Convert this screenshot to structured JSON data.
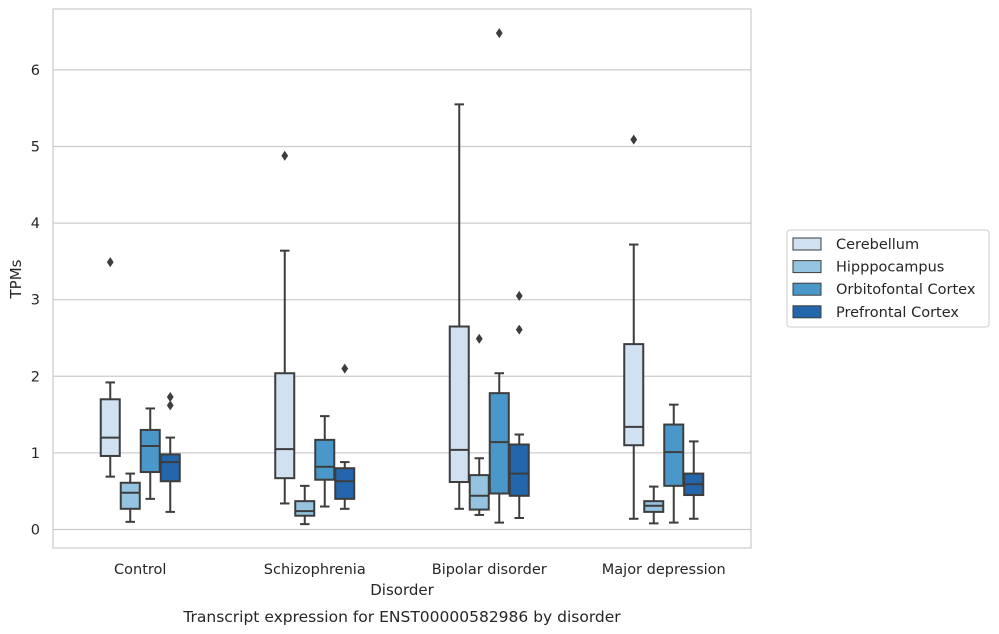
{
  "chart_data": {
    "type": "box",
    "title": "Transcript expression for ENST00000582986 by disorder",
    "xlabel": "Disorder",
    "ylabel": "TPMs",
    "categories": [
      "Control",
      "Schizophrenia",
      "Bipolar disorder",
      "Major depression"
    ],
    "ylim": [
      -0.24,
      6.8
    ],
    "yticks": [
      0,
      1,
      2,
      3,
      4,
      5,
      6
    ],
    "grid": "horizontal",
    "legend_position": "right",
    "series": [
      {
        "name": "Cerebellum",
        "color": "#d0e1f2",
        "boxes": [
          {
            "whisker_low": 0.69,
            "q1": 0.96,
            "median": 1.2,
            "q3": 1.7,
            "whisker_high": 1.92,
            "outliers": [
              3.49
            ]
          },
          {
            "whisker_low": 0.34,
            "q1": 0.67,
            "median": 1.05,
            "q3": 2.04,
            "whisker_high": 3.64,
            "outliers": [
              4.88
            ]
          },
          {
            "whisker_low": 0.27,
            "q1": 0.62,
            "median": 1.04,
            "q3": 2.65,
            "whisker_high": 5.55,
            "outliers": []
          },
          {
            "whisker_low": 0.14,
            "q1": 1.1,
            "median": 1.34,
            "q3": 2.42,
            "whisker_high": 3.72,
            "outliers": [
              5.09
            ]
          }
        ]
      },
      {
        "name": "Hipppocampus",
        "color": "#94c4df",
        "boxes": [
          {
            "whisker_low": 0.1,
            "q1": 0.27,
            "median": 0.48,
            "q3": 0.61,
            "whisker_high": 0.73,
            "outliers": []
          },
          {
            "whisker_low": 0.07,
            "q1": 0.18,
            "median": 0.24,
            "q3": 0.37,
            "whisker_high": 0.57,
            "outliers": []
          },
          {
            "whisker_low": 0.19,
            "q1": 0.26,
            "median": 0.44,
            "q3": 0.71,
            "whisker_high": 0.93,
            "outliers": [
              2.49
            ]
          },
          {
            "whisker_low": 0.08,
            "q1": 0.23,
            "median": 0.31,
            "q3": 0.37,
            "whisker_high": 0.56,
            "outliers": []
          }
        ]
      },
      {
        "name": "Orbitofontal Cortex",
        "color": "#4a98c9",
        "boxes": [
          {
            "whisker_low": 0.4,
            "q1": 0.75,
            "median": 1.09,
            "q3": 1.3,
            "whisker_high": 1.58,
            "outliers": []
          },
          {
            "whisker_low": 0.3,
            "q1": 0.65,
            "median": 0.82,
            "q3": 1.17,
            "whisker_high": 1.48,
            "outliers": []
          },
          {
            "whisker_low": 0.09,
            "q1": 0.47,
            "median": 1.14,
            "q3": 1.78,
            "whisker_high": 2.04,
            "outliers": [
              6.48
            ]
          },
          {
            "whisker_low": 0.09,
            "q1": 0.57,
            "median": 1.01,
            "q3": 1.37,
            "whisker_high": 1.63,
            "outliers": []
          }
        ]
      },
      {
        "name": "Prefrontal Cortex",
        "color": "#2366ac",
        "boxes": [
          {
            "whisker_low": 0.23,
            "q1": 0.63,
            "median": 0.88,
            "q3": 0.98,
            "whisker_high": 1.2,
            "outliers": [
              1.62,
              1.73
            ]
          },
          {
            "whisker_low": 0.27,
            "q1": 0.4,
            "median": 0.63,
            "q3": 0.8,
            "whisker_high": 0.88,
            "outliers": [
              2.1
            ]
          },
          {
            "whisker_low": 0.15,
            "q1": 0.44,
            "median": 0.73,
            "q3": 1.11,
            "whisker_high": 1.24,
            "outliers": [
              2.61,
              3.05
            ]
          },
          {
            "whisker_low": 0.14,
            "q1": 0.45,
            "median": 0.59,
            "q3": 0.73,
            "whisker_high": 1.15,
            "outliers": []
          }
        ]
      }
    ]
  }
}
